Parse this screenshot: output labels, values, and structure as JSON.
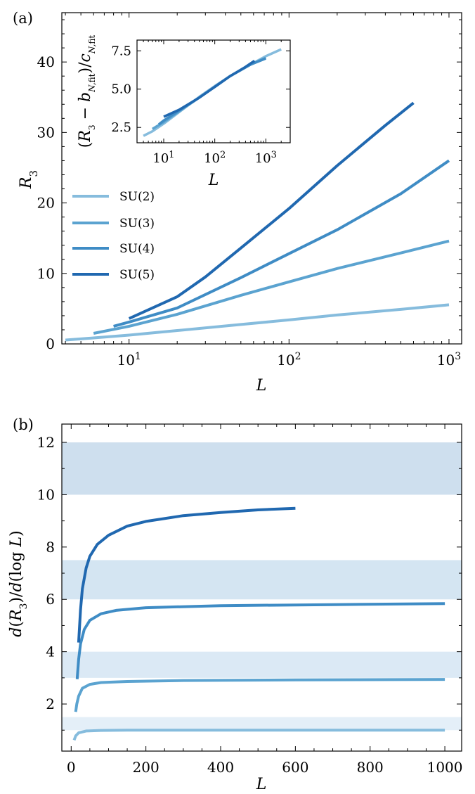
{
  "chart_data": [
    {
      "panel": "(a)",
      "type": "line",
      "xscale": "log",
      "xlim": [
        3.8,
        1200
      ],
      "ylim": [
        0,
        47
      ],
      "xlabel": "L",
      "ylabel": "R_3",
      "xticks": [
        10,
        100,
        1000
      ],
      "xtick_labels": [
        "10^1",
        "10^2",
        "10^3"
      ],
      "yticks": [
        0,
        10,
        20,
        30,
        40
      ],
      "legend": "upper-left",
      "grid": false,
      "series": [
        {
          "name": "SU(2)",
          "color": "#86bcdd",
          "x": [
            4,
            6,
            10,
            20,
            50,
            100,
            200,
            500,
            1000
          ],
          "y": [
            0.55,
            0.85,
            1.25,
            1.9,
            2.75,
            3.4,
            4.1,
            4.9,
            5.55
          ]
        },
        {
          "name": "SU(3)",
          "color": "#5ba3d0",
          "x": [
            6,
            10,
            20,
            50,
            100,
            200,
            500,
            1000
          ],
          "y": [
            1.5,
            2.5,
            4.2,
            6.9,
            8.8,
            10.7,
            12.9,
            14.6
          ]
        },
        {
          "name": "SU(4)",
          "color": "#3f8cc5",
          "x": [
            8,
            10,
            20,
            50,
            100,
            200,
            500,
            1000
          ],
          "y": [
            2.5,
            3.1,
            5.1,
            9.4,
            12.8,
            16.2,
            21.3,
            26.0
          ]
        },
        {
          "name": "SU(5)",
          "color": "#2068b0",
          "x": [
            10,
            20,
            30,
            50,
            100,
            200,
            400,
            600
          ],
          "y": [
            3.6,
            6.7,
            9.5,
            13.6,
            19.2,
            25.3,
            31.0,
            34.2
          ]
        }
      ]
    },
    {
      "panel": "(a) inset",
      "type": "line",
      "xscale": "log",
      "xlim": [
        3,
        3000
      ],
      "ylim": [
        1.5,
        8.2
      ],
      "xlabel": "L",
      "ylabel": "(R_3 - b_N,fit) / c_N,fit",
      "xticks": [
        10,
        100,
        1000
      ],
      "xtick_labels": [
        "10^1",
        "10^2",
        "10^3"
      ],
      "yticks": [
        2.5,
        5.0,
        7.5
      ],
      "ytick_labels": [
        "2.5",
        "5.0",
        "7.5"
      ],
      "series": [
        {
          "name": "SU(2)",
          "color": "#86bcdd",
          "x": [
            4,
            6,
            10,
            20,
            50,
            100,
            200,
            500,
            1000,
            2000
          ],
          "y": [
            1.95,
            2.25,
            2.75,
            3.5,
            4.5,
            5.2,
            5.85,
            6.6,
            7.15,
            7.6
          ]
        },
        {
          "name": "SU(3)",
          "color": "#5ba3d0",
          "x": [
            6,
            10,
            20,
            50,
            100,
            200,
            500,
            1000
          ],
          "y": [
            2.4,
            2.85,
            3.55,
            4.45,
            5.15,
            5.85,
            6.6,
            7.05
          ]
        },
        {
          "name": "SU(4)",
          "color": "#3f8cc5",
          "x": [
            8,
            10,
            20,
            50,
            100,
            200,
            500,
            1000
          ],
          "y": [
            2.7,
            2.95,
            3.6,
            4.45,
            5.15,
            5.85,
            6.6,
            7.0
          ]
        },
        {
          "name": "SU(5)",
          "color": "#2068b0",
          "x": [
            10,
            20,
            50,
            100,
            200,
            400,
            600
          ],
          "y": [
            3.2,
            3.65,
            4.45,
            5.15,
            5.85,
            6.45,
            6.85
          ]
        }
      ]
    },
    {
      "panel": "(b)",
      "type": "line",
      "xlim": [
        -25,
        1045
      ],
      "ylim": [
        0.2,
        12.7
      ],
      "xlabel": "L",
      "ylabel": "d(R_3)/d(log L)",
      "xticks": [
        0,
        200,
        400,
        600,
        800,
        1000
      ],
      "yticks": [
        2,
        4,
        6,
        8,
        10,
        12
      ],
      "bands": [
        {
          "y0": 1.0,
          "y1": 1.5,
          "color": "#e4eff8"
        },
        {
          "y0": 3.0,
          "y1": 4.0,
          "color": "#dbe9f5"
        },
        {
          "y0": 6.0,
          "y1": 7.5,
          "color": "#d4e5f2"
        },
        {
          "y0": 10.0,
          "y1": 12.0,
          "color": "#cedfee"
        }
      ],
      "series": [
        {
          "name": "SU(2)",
          "color": "#86bcdd",
          "x": [
            8,
            12,
            20,
            40,
            80,
            150,
            300,
            600,
            1000
          ],
          "y": [
            0.62,
            0.78,
            0.9,
            0.97,
            0.99,
            1.0,
            1.0,
            1.0,
            1.0
          ]
        },
        {
          "name": "SU(3)",
          "color": "#5ba3d0",
          "x": [
            12,
            15,
            20,
            30,
            50,
            80,
            150,
            300,
            600,
            1000
          ],
          "y": [
            1.7,
            2.0,
            2.3,
            2.6,
            2.75,
            2.82,
            2.86,
            2.9,
            2.92,
            2.94
          ]
        },
        {
          "name": "SU(4)",
          "color": "#3f8cc5",
          "x": [
            16,
            20,
            25,
            35,
            50,
            80,
            120,
            200,
            400,
            700,
            1000
          ],
          "y": [
            2.95,
            3.7,
            4.3,
            4.85,
            5.2,
            5.45,
            5.58,
            5.68,
            5.76,
            5.8,
            5.84
          ]
        },
        {
          "name": "SU(5)",
          "color": "#2068b0",
          "x": [
            20,
            25,
            30,
            40,
            50,
            70,
            100,
            150,
            200,
            300,
            400,
            500,
            600
          ],
          "y": [
            4.35,
            5.6,
            6.4,
            7.2,
            7.65,
            8.1,
            8.45,
            8.8,
            8.98,
            9.2,
            9.32,
            9.42,
            9.48
          ]
        }
      ]
    }
  ]
}
